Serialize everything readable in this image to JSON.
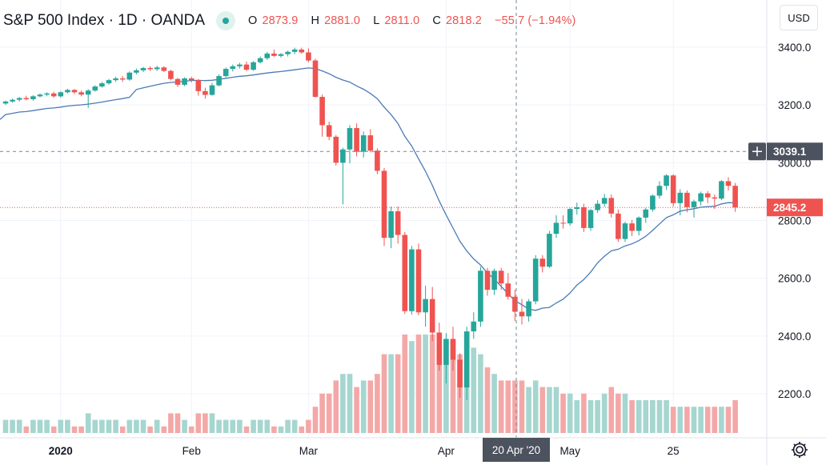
{
  "legend": {
    "symbol_title": "S&P 500 Index · 1D · OANDA",
    "open_label": "O",
    "open": "2873.9",
    "high_label": "H",
    "high": "2881.0",
    "low_label": "L",
    "low": "2811.0",
    "close_label": "C",
    "close": "2818.2",
    "change": "−55.7 (−1.94%)"
  },
  "currency_button": "USD",
  "crosshair": {
    "price_label": "3039.1",
    "date_label": "20 Apr '20",
    "add_icon": "plus-icon",
    "price_value": 3039.1
  },
  "last_price_label": "2845.2",
  "colors": {
    "up": "#26a69a",
    "down": "#ef5350",
    "up_volume": "#a5d6cf",
    "down_volume": "#f3a8a7",
    "ma": "#4a7bb5",
    "grid": "#f0f3fa",
    "crosshair": "#758696"
  },
  "settings_icon": "gear-icon",
  "chart_data": {
    "type": "candlestick",
    "title": "S&P 500 Index · 1D · OANDA",
    "ylim": [
      2075,
      3500
    ],
    "y_ticks": [
      {
        "value": 3400,
        "label": "3400.0"
      },
      {
        "value": 3200,
        "label": "3200.0"
      },
      {
        "value": 3000,
        "label": "3000.0"
      },
      {
        "value": 2800,
        "label": "2800.0"
      },
      {
        "value": 2600,
        "label": "2600.0"
      },
      {
        "value": 2400,
        "label": "2400.0"
      },
      {
        "value": 2200,
        "label": "2200.0"
      }
    ],
    "x_ticks": [
      {
        "index": 8,
        "label": "2020",
        "bold": true
      },
      {
        "index": 27,
        "label": "Feb",
        "bold": false
      },
      {
        "index": 44,
        "label": "Mar",
        "bold": false
      },
      {
        "index": 64,
        "label": "Apr",
        "bold": false
      },
      {
        "index": 82,
        "label": "May",
        "bold": false
      },
      {
        "index": 97,
        "label": "25",
        "bold": false
      }
    ],
    "x_range": [
      0,
      100
    ],
    "crosshair_index": 75,
    "candles": [
      [
        3205,
        3215,
        3200,
        3212,
        2
      ],
      [
        3212,
        3222,
        3208,
        3218,
        2
      ],
      [
        3218,
        3228,
        3212,
        3224,
        2
      ],
      [
        3224,
        3232,
        3216,
        3220,
        1
      ],
      [
        3220,
        3234,
        3215,
        3230,
        2
      ],
      [
        3230,
        3240,
        3226,
        3236,
        2
      ],
      [
        3236,
        3244,
        3230,
        3240,
        2
      ],
      [
        3240,
        3246,
        3225,
        3230,
        1
      ],
      [
        3230,
        3248,
        3225,
        3244,
        2
      ],
      [
        3244,
        3256,
        3240,
        3252,
        2
      ],
      [
        3252,
        3256,
        3238,
        3244,
        1
      ],
      [
        3244,
        3250,
        3230,
        3236,
        1
      ],
      [
        3236,
        3255,
        3190,
        3250,
        3
      ],
      [
        3250,
        3268,
        3246,
        3264,
        2
      ],
      [
        3264,
        3280,
        3260,
        3275,
        2
      ],
      [
        3275,
        3290,
        3270,
        3286,
        2
      ],
      [
        3286,
        3298,
        3280,
        3292,
        2
      ],
      [
        3292,
        3300,
        3280,
        3288,
        1
      ],
      [
        3288,
        3316,
        3284,
        3312,
        2
      ],
      [
        3312,
        3326,
        3306,
        3320,
        2
      ],
      [
        3320,
        3332,
        3314,
        3328,
        2
      ],
      [
        3328,
        3334,
        3318,
        3324,
        1
      ],
      [
        3324,
        3336,
        3318,
        3330,
        2
      ],
      [
        3330,
        3334,
        3314,
        3318,
        1
      ],
      [
        3318,
        3322,
        3285,
        3290,
        3
      ],
      [
        3290,
        3294,
        3262,
        3270,
        3
      ],
      [
        3270,
        3296,
        3265,
        3292,
        2
      ],
      [
        3292,
        3298,
        3278,
        3286,
        1
      ],
      [
        3286,
        3290,
        3232,
        3248,
        3
      ],
      [
        3248,
        3260,
        3222,
        3235,
        3
      ],
      [
        3235,
        3276,
        3232,
        3268,
        3
      ],
      [
        3268,
        3306,
        3264,
        3300,
        2
      ],
      [
        3300,
        3330,
        3296,
        3325,
        2
      ],
      [
        3325,
        3340,
        3316,
        3334,
        2
      ],
      [
        3334,
        3346,
        3326,
        3340,
        2
      ],
      [
        3340,
        3350,
        3318,
        3322,
        1
      ],
      [
        3322,
        3352,
        3318,
        3348,
        2
      ],
      [
        3348,
        3368,
        3344,
        3362,
        2
      ],
      [
        3362,
        3384,
        3356,
        3378,
        2
      ],
      [
        3378,
        3392,
        3366,
        3370,
        1
      ],
      [
        3370,
        3380,
        3364,
        3376,
        1
      ],
      [
        3376,
        3388,
        3368,
        3384,
        2
      ],
      [
        3384,
        3398,
        3376,
        3392,
        2
      ],
      [
        3392,
        3398,
        3378,
        3382,
        1
      ],
      [
        3382,
        3396,
        3348,
        3354,
        2
      ],
      [
        3354,
        3360,
        3226,
        3228,
        4
      ],
      [
        3228,
        3236,
        3090,
        3130,
        6
      ],
      [
        3130,
        3142,
        3078,
        3090,
        6
      ],
      [
        3090,
        3096,
        2990,
        3000,
        8
      ],
      [
        3000,
        3052,
        2856,
        3046,
        9
      ],
      [
        3046,
        3130,
        2998,
        3120,
        9
      ],
      [
        3120,
        3136,
        3022,
        3038,
        7
      ],
      [
        3038,
        3108,
        3018,
        3095,
        8
      ],
      [
        3095,
        3116,
        3036,
        3042,
        8
      ],
      [
        3042,
        3050,
        2960,
        2972,
        9
      ],
      [
        2972,
        2982,
        2712,
        2740,
        12
      ],
      [
        2740,
        2848,
        2704,
        2832,
        12
      ],
      [
        2832,
        2848,
        2720,
        2750,
        12
      ],
      [
        2750,
        2760,
        2476,
        2486,
        15
      ],
      [
        2486,
        2712,
        2474,
        2700,
        14
      ],
      [
        2700,
        2720,
        2472,
        2482,
        15
      ],
      [
        2482,
        2574,
        2432,
        2528,
        15
      ],
      [
        2528,
        2570,
        2382,
        2412,
        15
      ],
      [
        2412,
        2446,
        2280,
        2300,
        14
      ],
      [
        2300,
        2410,
        2236,
        2390,
        14
      ],
      [
        2390,
        2432,
        2280,
        2318,
        14
      ],
      [
        2318,
        2340,
        2186,
        2222,
        12
      ],
      [
        2222,
        2432,
        2178,
        2416,
        15
      ],
      [
        2416,
        2482,
        2390,
        2450,
        13
      ],
      [
        2450,
        2640,
        2432,
        2626,
        12
      ],
      [
        2626,
        2636,
        2540,
        2560,
        10
      ],
      [
        2560,
        2634,
        2542,
        2626,
        9
      ],
      [
        2626,
        2636,
        2560,
        2582,
        8
      ],
      [
        2582,
        2618,
        2526,
        2536,
        8
      ],
      [
        2536,
        2560,
        2452,
        2484,
        8
      ],
      [
        2484,
        2528,
        2440,
        2468,
        8
      ],
      [
        2468,
        2528,
        2450,
        2520,
        7
      ],
      [
        2520,
        2680,
        2510,
        2668,
        8
      ],
      [
        2668,
        2680,
        2620,
        2640,
        7
      ],
      [
        2640,
        2764,
        2636,
        2754,
        7
      ],
      [
        2754,
        2818,
        2740,
        2792,
        7
      ],
      [
        2792,
        2818,
        2772,
        2790,
        6
      ],
      [
        2790,
        2844,
        2782,
        2840,
        6
      ],
      [
        2840,
        2862,
        2820,
        2846,
        5
      ],
      [
        2846,
        2858,
        2760,
        2774,
        6
      ],
      [
        2774,
        2840,
        2764,
        2836,
        5
      ],
      [
        2836,
        2870,
        2826,
        2858,
        5
      ],
      [
        2858,
        2892,
        2848,
        2878,
        6
      ],
      [
        2878,
        2890,
        2810,
        2824,
        7
      ],
      [
        2824,
        2838,
        2726,
        2736,
        6
      ],
      [
        2736,
        2796,
        2726,
        2790,
        6
      ],
      [
        2790,
        2802,
        2746,
        2764,
        5
      ],
      [
        2764,
        2814,
        2748,
        2810,
        5
      ],
      [
        2810,
        2844,
        2792,
        2838,
        5
      ],
      [
        2838,
        2890,
        2830,
        2886,
        5
      ],
      [
        2886,
        2936,
        2876,
        2920,
        5
      ],
      [
        2920,
        2960,
        2906,
        2956,
        5
      ],
      [
        2956,
        2960,
        2848,
        2860,
        4
      ],
      [
        2860,
        2908,
        2818,
        2896,
        4
      ],
      [
        2896,
        2904,
        2828,
        2846,
        4
      ],
      [
        2846,
        2872,
        2810,
        2866,
        4
      ],
      [
        2866,
        2900,
        2852,
        2894,
        4
      ],
      [
        2894,
        2902,
        2860,
        2880,
        4
      ],
      [
        2880,
        2890,
        2840,
        2876,
        4
      ],
      [
        2876,
        2940,
        2870,
        2936,
        4
      ],
      [
        2936,
        2950,
        2904,
        2920,
        4
      ],
      [
        2920,
        2930,
        2830,
        2845,
        5
      ]
    ]
  }
}
